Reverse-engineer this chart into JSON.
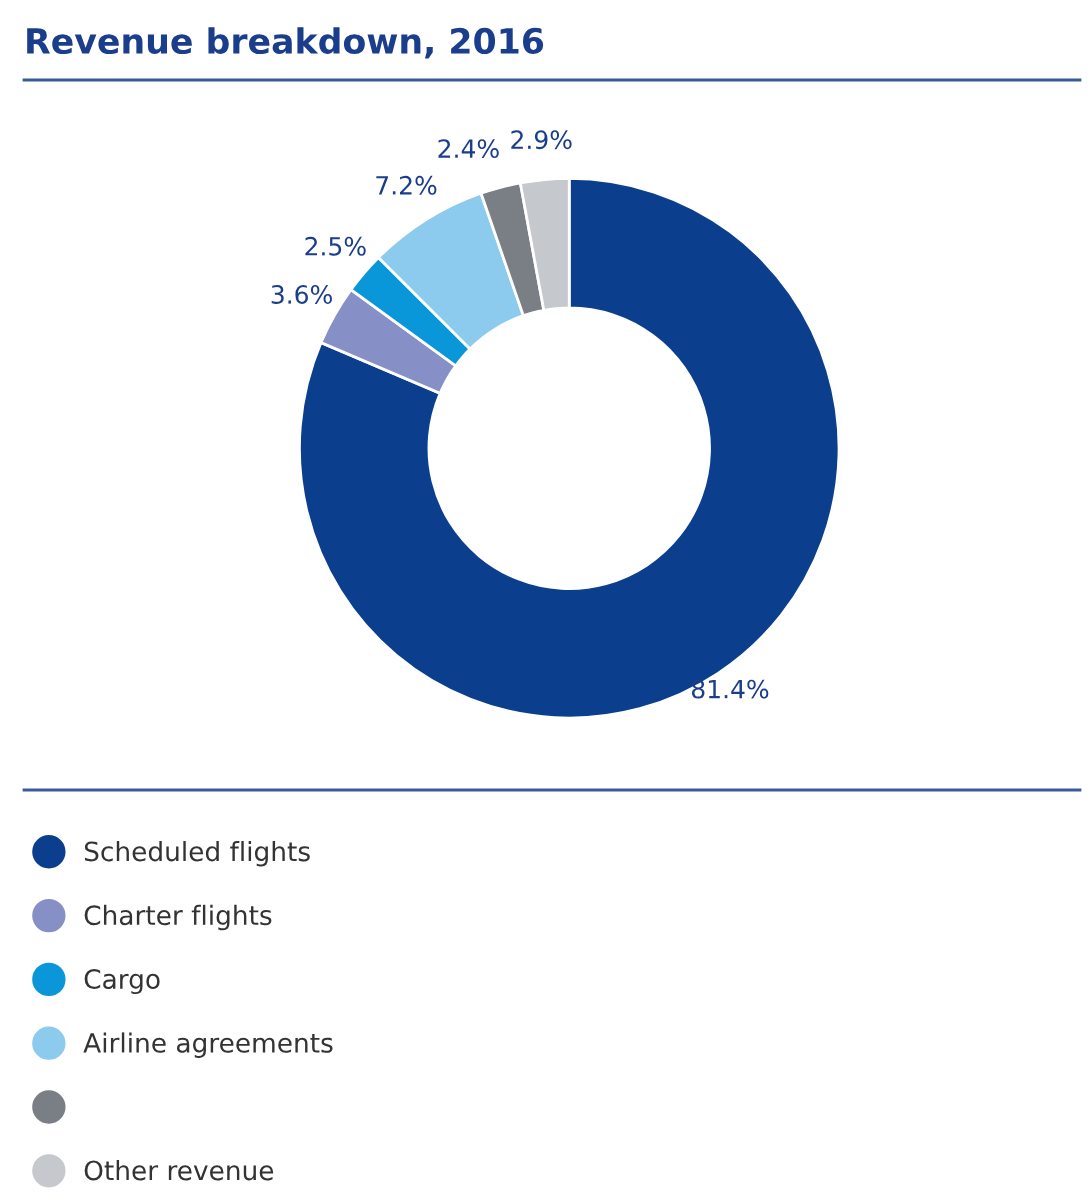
{
  "chart_data": {
    "type": "donut",
    "title": "Revenue breakdown, 2016",
    "categories": [
      "Scheduled flights",
      "Charter flights",
      "Cargo",
      "Airline agreements",
      null,
      "Other revenue"
    ],
    "values": [
      81.4,
      3.6,
      2.5,
      7.2,
      2.4,
      2.9
    ],
    "colors": [
      "#0b3f8e",
      "#8790c6",
      "#0a97d9",
      "#8dcbee",
      "#7a7f86",
      "#c5c8cc"
    ],
    "value_labels": [
      "81.4%",
      "3.6%",
      "2.5%",
      "7.2%",
      "2.4%",
      "2.9%"
    ],
    "legend": "bottom"
  }
}
